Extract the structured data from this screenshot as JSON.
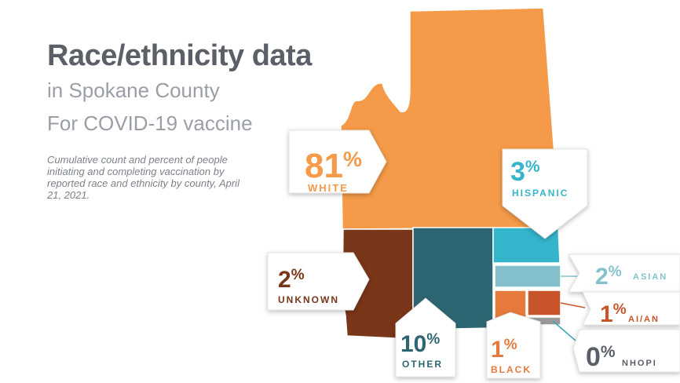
{
  "header": {
    "title": "Race/ethnicity data",
    "subtitle_line1": "in Spokane County",
    "subtitle_line2": "For COVID-19 vaccine",
    "note": "Cumulative count and percent of people initiating and completing vaccination by reported race and ethnicity by county, April 21, 2021."
  },
  "chart_data": {
    "type": "treemap",
    "title": "Race/ethnicity data",
    "subtitle": "in Spokane County For COVID-19 vaccine",
    "unit": "%",
    "categories": [
      "WHITE",
      "HISPANIC",
      "UNKNOWN",
      "OTHER",
      "ASIAN",
      "AI/AN",
      "BLACK",
      "NHOPI"
    ],
    "values": [
      81,
      3,
      2,
      10,
      2,
      1,
      1,
      0
    ],
    "percent_labels": [
      "81%",
      "3%",
      "2%",
      "10%",
      "2%",
      "1%",
      "1%",
      "0%"
    ],
    "colors": {
      "WHITE": "#f49a48",
      "HISPANIC": "#35b5cc",
      "UNKNOWN": "#7a3618",
      "OTHER": "#2d6672",
      "ASIAN": "#85c1cc",
      "AI/AN": "#c8542a",
      "BLACK": "#e57a3c",
      "NHOPI": "#999999"
    },
    "label_colors": {
      "WHITE": "#f49a48",
      "HISPANIC": "#35b5cc",
      "UNKNOWN": "#7a3618",
      "OTHER": "#2d6672",
      "ASIAN": "#85c1cc",
      "AI/AN": "#c8542a",
      "BLACK": "#e57a3c",
      "NHOPI": "#5b5f68"
    }
  }
}
